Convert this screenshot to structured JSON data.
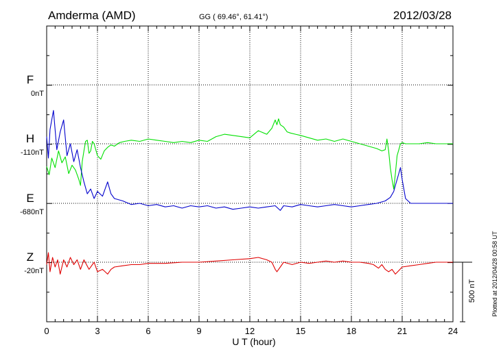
{
  "header": {
    "station": "Amderma (AMD)",
    "coords": "GG ( 69.46°,  61.41°)",
    "date": "2012/03/28"
  },
  "footer": {
    "plotted": "Plotted at 2012/04/28 00:58 UT",
    "scale_label": "500 nT"
  },
  "chart_data": {
    "type": "line",
    "xlabel": "U T (hour)",
    "xlim": [
      0,
      24
    ],
    "xticks": [
      "0",
      "3",
      "6",
      "9",
      "12",
      "15",
      "18",
      "21",
      "24"
    ],
    "grid": true,
    "scale_bar_nT": 500,
    "colors": {
      "F": "#ffa500",
      "H": "#00e000",
      "E": "#0000cc",
      "Z": "#e00000"
    },
    "channels": [
      {
        "name": "F",
        "baseline": "0nT",
        "color": "#ffa500",
        "x": [],
        "y": []
      },
      {
        "name": "H",
        "baseline": "-110nT",
        "color": "#00e000",
        "x": [
          0,
          0.15,
          0.3,
          0.5,
          0.7,
          0.9,
          1.1,
          1.3,
          1.5,
          1.7,
          1.9,
          2.0,
          2.1,
          2.2,
          2.3,
          2.4,
          2.5,
          2.6,
          2.7,
          2.8,
          3.0,
          3.2,
          3.4,
          3.6,
          3.8,
          4.0,
          4.3,
          4.6,
          5.0,
          5.5,
          6.0,
          6.5,
          7.0,
          7.5,
          8.0,
          8.5,
          9.0,
          9.5,
          10.0,
          10.5,
          11.0,
          11.5,
          12.0,
          12.5,
          13.0,
          13.3,
          13.5,
          13.6,
          13.7,
          13.8,
          14.0,
          14.2,
          14.4,
          14.7,
          15.0,
          15.5,
          16.0,
          16.5,
          17.0,
          17.5,
          18.0,
          18.5,
          19.0,
          19.5,
          19.8,
          20.0,
          20.1,
          20.2,
          20.3,
          20.4,
          20.5,
          20.6,
          20.7,
          20.8,
          20.9,
          21.0,
          21.2,
          21.5,
          22.0,
          22.5,
          23.0,
          23.5,
          24.0
        ],
        "y": [
          -190,
          -260,
          -120,
          -200,
          -60,
          -160,
          -110,
          -250,
          -180,
          -220,
          -300,
          -350,
          -150,
          -60,
          20,
          30,
          -80,
          -60,
          20,
          0,
          -100,
          -130,
          -60,
          -30,
          -10,
          -20,
          10,
          20,
          30,
          20,
          40,
          30,
          20,
          10,
          20,
          10,
          30,
          20,
          60,
          80,
          70,
          60,
          50,
          110,
          80,
          130,
          200,
          160,
          210,
          160,
          140,
          100,
          90,
          80,
          70,
          50,
          30,
          40,
          20,
          40,
          20,
          0,
          -20,
          -40,
          -60,
          -50,
          40,
          -60,
          -200,
          -300,
          -380,
          -250,
          -100,
          -50,
          0,
          10,
          0,
          0,
          0,
          10,
          0,
          0,
          0
        ]
      },
      {
        "name": "E",
        "baseline": "-680nT",
        "color": "#0000cc",
        "x": [
          0,
          0.1,
          0.2,
          0.4,
          0.6,
          0.8,
          1.0,
          1.2,
          1.4,
          1.6,
          1.8,
          2.0,
          2.2,
          2.4,
          2.6,
          2.8,
          3.0,
          3.3,
          3.6,
          3.8,
          4.0,
          4.5,
          5.0,
          5.5,
          6.0,
          6.5,
          7.0,
          7.5,
          8.0,
          8.5,
          9.0,
          9.5,
          10.0,
          10.5,
          11.0,
          11.5,
          12.0,
          12.5,
          13.0,
          13.5,
          13.8,
          14.0,
          14.5,
          15.0,
          15.5,
          16.0,
          16.5,
          17.0,
          17.5,
          18.0,
          18.5,
          19.0,
          19.5,
          20.0,
          20.3,
          20.5,
          20.6,
          20.7,
          20.9,
          21.0,
          21.2,
          21.5,
          22.0,
          22.5,
          23.0,
          23.5,
          24.0
        ],
        "y": [
          560,
          380,
          620,
          780,
          450,
          600,
          700,
          400,
          500,
          350,
          450,
          300,
          180,
          80,
          120,
          40,
          100,
          60,
          180,
          80,
          40,
          20,
          -10,
          0,
          -20,
          -10,
          -30,
          -20,
          -40,
          -20,
          -30,
          -20,
          -40,
          -30,
          -50,
          -40,
          -30,
          -40,
          -30,
          -20,
          -60,
          -20,
          -30,
          -10,
          -20,
          -30,
          -20,
          -10,
          -20,
          -30,
          -20,
          -10,
          0,
          20,
          50,
          100,
          150,
          200,
          300,
          200,
          40,
          0,
          0,
          0,
          0,
          0,
          0
        ]
      },
      {
        "name": "Z",
        "baseline": "-20nT",
        "color": "#e00000",
        "x": [
          0,
          0.1,
          0.2,
          0.35,
          0.5,
          0.65,
          0.8,
          1.0,
          1.2,
          1.4,
          1.6,
          1.8,
          2.0,
          2.2,
          2.5,
          2.8,
          3.0,
          3.3,
          3.6,
          3.8,
          4.0,
          4.5,
          5.0,
          5.5,
          6.0,
          6.5,
          7.0,
          8.0,
          9.0,
          10.0,
          11.0,
          12.0,
          12.5,
          13.0,
          13.3,
          13.5,
          13.6,
          13.8,
          14.0,
          14.5,
          15.0,
          15.5,
          16.0,
          16.5,
          17.0,
          17.5,
          18.0,
          18.5,
          19.0,
          19.3,
          19.6,
          19.8,
          20.0,
          20.2,
          20.4,
          20.6,
          20.8,
          21.0,
          21.5,
          22.0,
          22.5,
          23.0,
          23.5,
          24.0
        ],
        "y": [
          -20,
          80,
          -80,
          40,
          -40,
          20,
          -100,
          20,
          -40,
          40,
          -20,
          20,
          -60,
          20,
          -60,
          0,
          -80,
          -60,
          -100,
          -60,
          -40,
          -30,
          -20,
          -20,
          -10,
          -10,
          -10,
          0,
          0,
          10,
          20,
          30,
          40,
          20,
          0,
          -60,
          -80,
          -40,
          0,
          -20,
          0,
          -10,
          0,
          10,
          0,
          10,
          0,
          0,
          -10,
          -20,
          -50,
          -20,
          -60,
          -80,
          -60,
          -100,
          -70,
          -40,
          -30,
          -20,
          -10,
          0,
          0,
          0
        ]
      }
    ]
  }
}
